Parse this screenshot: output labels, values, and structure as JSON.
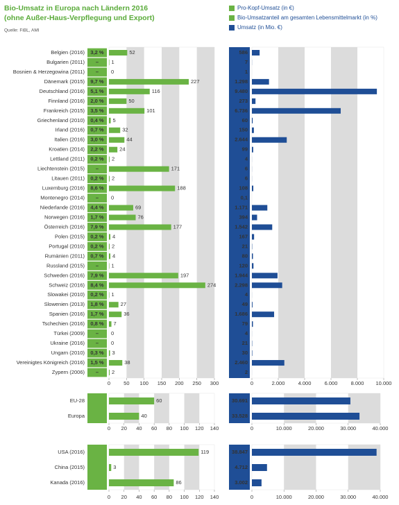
{
  "chart_data": [
    {
      "type": "bar",
      "title": "Bio-Umsatz in Europa nach Ländern 2016",
      "subtitle": "(ohne Außer-Haus-Verpflegung und Export)",
      "source": "Quelle: FiBL, AMI",
      "categories": [
        "Belgien (2016)",
        "Bulgarien (2011)",
        "Bosnien & Herzegowina (2011)",
        "Dänemark (2015)",
        "Deutschland (2016)",
        "Finnland (2016)",
        "Frankreich (2015)",
        "Griechenland (2010)",
        "Irland (2016)",
        "Italien (2016)",
        "Kroatien (2014)",
        "Lettland (2011)",
        "Liechtenstein (2015)",
        "Litauen (2011)",
        "Luxemburg (2016)",
        "Montenegro (2014)",
        "Niederlande (2016)",
        "Norwegen (2016)",
        "Österreich (2016)",
        "Polen (2015)",
        "Portugal (2010)",
        "Rumänien (2011)",
        "Russland (2015)",
        "Schweden (2016)",
        "Schweiz (2016)",
        "Slowakei (2010)",
        "Slowenien (2013)",
        "Spanien (2016)",
        "Tschechien (2016)",
        "Türkei (2009)",
        "Ukraine (2016)",
        "Ungarn (2010)",
        "Vereinigtes Königreich (2016)",
        "Zypern (2006)"
      ],
      "series": [
        {
          "name": "Pro-Kopf-Umsatz (in €)",
          "color": "#6ab344",
          "values": [
            52,
            1,
            0,
            227,
            116,
            50,
            101,
            5,
            32,
            44,
            24,
            2,
            171,
            2,
            188,
            0,
            69,
            76,
            177,
            4,
            2,
            4,
            1,
            197,
            274,
            1,
            27,
            36,
            7,
            0,
            0,
            3,
            38,
            2
          ]
        },
        {
          "name": "Bio-Umsatzanteil am gesamten Lebensmittelmarkt (in %)",
          "color": "#6ab344",
          "values": [
            3.2,
            null,
            null,
            9.7,
            5.1,
            2.0,
            3.5,
            0.4,
            0.7,
            3.0,
            2.2,
            0.2,
            null,
            0.2,
            8.6,
            null,
            4.4,
            1.7,
            7.9,
            0.2,
            0.2,
            0.7,
            null,
            7.9,
            8.4,
            0.2,
            1.8,
            1.7,
            0.8,
            null,
            null,
            0.3,
            1.5,
            null
          ],
          "value_labels": [
            "3,2 %",
            "–",
            "–",
            "9,7 %",
            "5,1 %",
            "2,0 %",
            "3,5 %",
            "0,4 %",
            "0,7 %",
            "3,0 %",
            "2,2 %",
            "0,2 %",
            "–",
            "0,2 %",
            "8,6 %",
            "–",
            "4,4 %",
            "1,7 %",
            "7,9 %",
            "0,2 %",
            "0,2 %",
            "0,7 %",
            "–",
            "7,9 %",
            "8,4 %",
            "0,2 %",
            "1,8 %",
            "1,7 %",
            "0,8 %",
            "–",
            "–",
            "0,3 %",
            "1,5 %",
            "–"
          ]
        },
        {
          "name": "Umsatz (in Mio. €)",
          "color": "#1f4e96",
          "axis": "x2",
          "values": [
            586,
            7,
            1,
            1298,
            9480,
            273,
            6736,
            60,
            150,
            2644,
            99,
            4,
            6,
            6,
            108,
            0.1,
            1171,
            394,
            1542,
            167,
            21,
            80,
            120,
            1944,
            2298,
            4,
            49,
            1686,
            79,
            4,
            21,
            30,
            2460,
            2
          ],
          "value_labels": [
            "586",
            "7",
            "1",
            "1.298",
            "9.480",
            "273",
            "6.736",
            "60",
            "150",
            "2.644",
            "99",
            "4",
            "6",
            "6",
            "108",
            "0,1",
            "1.171",
            "394",
            "1.542",
            "167",
            "21",
            "80",
            "120",
            "1.944",
            "2.298",
            "4",
            "49",
            "1.686",
            "79",
            "4",
            "21",
            "30",
            "2.460",
            "2"
          ]
        }
      ],
      "xlim": [
        0,
        300
      ],
      "xticks": [
        0,
        50,
        100,
        150,
        200,
        250,
        300
      ],
      "x2lim": [
        0,
        10000
      ],
      "x2ticks": [
        0,
        {
          "value": 2000,
          "label": "2.000"
        },
        {
          "value": 4000,
          "label": "4.000"
        },
        {
          "value": 6000,
          "label": "6.000"
        },
        {
          "value": 8000,
          "label": "8.000"
        },
        {
          "value": 10000,
          "label": "10.000"
        }
      ]
    },
    {
      "type": "bar",
      "categories": [
        "EU-28",
        "Europa"
      ],
      "series": [
        {
          "color": "#6ab344",
          "values": [
            60,
            40
          ]
        },
        {
          "color": "#1f4e96",
          "axis": "x2",
          "values": [
            30691,
            33528
          ],
          "value_labels": [
            "30.691",
            "33.528"
          ]
        }
      ],
      "xlim": [
        0,
        140
      ],
      "xticks": [
        0,
        20,
        40,
        60,
        80,
        100,
        120,
        140
      ],
      "x2lim": [
        0,
        40000
      ],
      "x2ticks": [
        0,
        {
          "value": 10000,
          "label": "10.000"
        },
        {
          "value": 20000,
          "label": "20.000"
        },
        {
          "value": 30000,
          "label": "30.000"
        },
        {
          "value": 40000,
          "label": "40.000"
        }
      ]
    },
    {
      "type": "bar",
      "categories": [
        "USA (2016)",
        "China (2015)",
        "Kanada (2016)"
      ],
      "series": [
        {
          "color": "#6ab344",
          "values": [
            119,
            3,
            86
          ]
        },
        {
          "color": "#1f4e96",
          "axis": "x2",
          "values": [
            38847,
            4712,
            3002
          ],
          "value_labels": [
            "38.847",
            "4.712",
            "3.002"
          ]
        }
      ],
      "xlim": [
        0,
        140
      ],
      "xticks": [
        0,
        20,
        40,
        60,
        80,
        100,
        120,
        140
      ],
      "x2lim": [
        0,
        40000
      ],
      "x2ticks": [
        0,
        {
          "value": 10000,
          "label": "10.000"
        },
        {
          "value": 20000,
          "label": "20.000"
        },
        {
          "value": 30000,
          "label": "30.000"
        },
        {
          "value": 40000,
          "label": "40.000"
        }
      ]
    }
  ]
}
